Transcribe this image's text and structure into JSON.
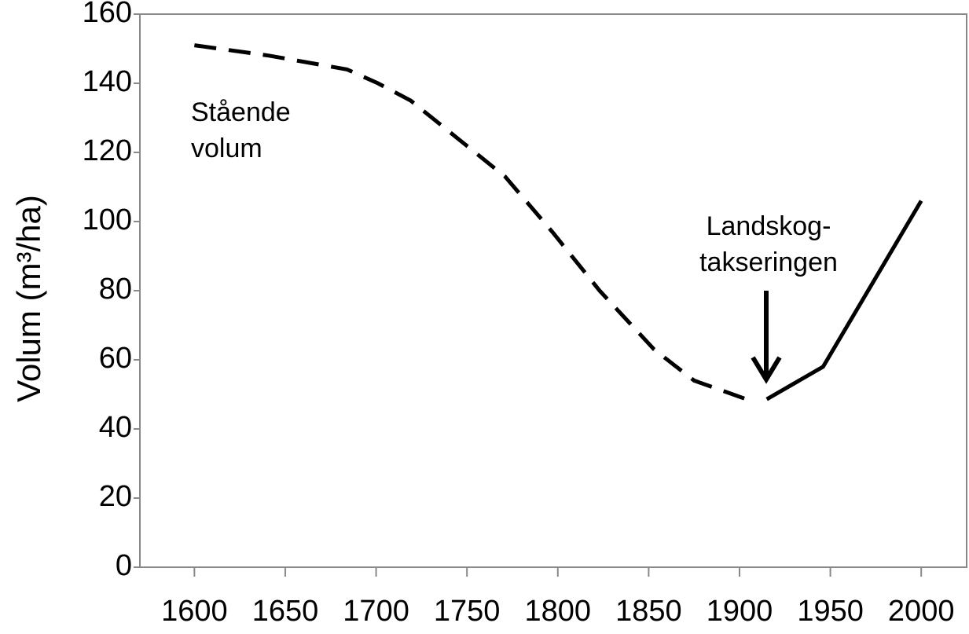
{
  "chart_data": {
    "type": "line",
    "ylabel": "Volum (m³/ha)",
    "x_values": [
      1600,
      1641,
      1684,
      1701,
      1719,
      1745,
      1771,
      1797,
      1823,
      1853,
      1875,
      1907
    ],
    "series": [
      {
        "style": "dashed",
        "color": "#000000",
        "x": [
          1600,
          1641,
          1684,
          1701,
          1719,
          1745,
          1771,
          1797,
          1823,
          1853,
          1875,
          1907
        ],
        "values": [
          151,
          148,
          144,
          140,
          135,
          124,
          113,
          97,
          80,
          63,
          54,
          48
        ]
      },
      {
        "style": "solid",
        "color": "#000000",
        "x": [
          1915,
          1946,
          2000
        ],
        "values": [
          48.6,
          58,
          106
        ]
      }
    ],
    "annotations": [
      {
        "lines": [
          "Stående",
          "volum"
        ]
      },
      {
        "lines": [
          "Landskog-",
          "takseringen"
        ]
      }
    ],
    "xlim": [
      1570,
      2025
    ],
    "xticks": [
      1600,
      1650,
      1700,
      1750,
      1800,
      1850,
      1900,
      1950,
      2000
    ],
    "ylim": [
      0,
      160
    ],
    "yticks": [
      0,
      20,
      40,
      60,
      80,
      100,
      120,
      140,
      160
    ]
  }
}
